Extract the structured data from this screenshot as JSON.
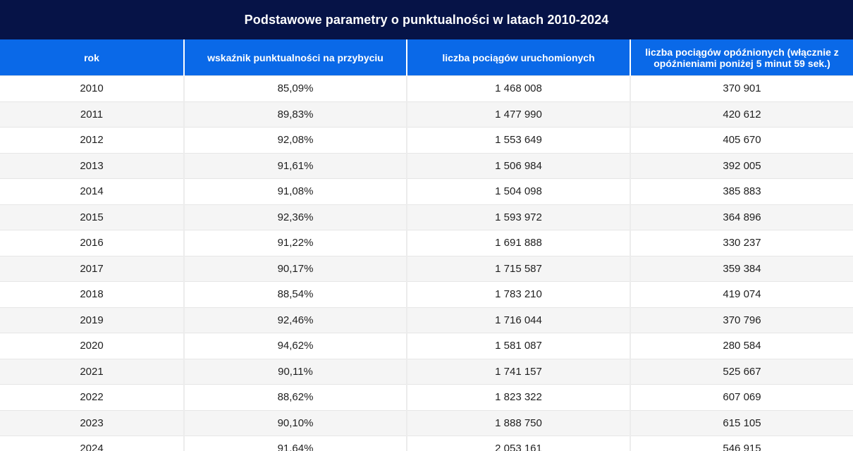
{
  "table": {
    "title": "Podstawowe parametry o punktualności w latach 2010-2024",
    "headers": [
      "rok",
      "wskaźnik punktualności na przybyciu",
      "liczba pociągów uruchomionych",
      "liczba pociągów opóźnionych (włącznie z opóźnieniami poniżej 5 minut 59 sek.)"
    ],
    "rows": [
      [
        "2010",
        "85,09%",
        "1 468 008",
        "370 901"
      ],
      [
        "2011",
        "89,83%",
        "1 477 990",
        "420 612"
      ],
      [
        "2012",
        "92,08%",
        "1 553 649",
        "405 670"
      ],
      [
        "2013",
        "91,61%",
        "1 506 984",
        "392 005"
      ],
      [
        "2014",
        "91,08%",
        "1 504 098",
        "385 883"
      ],
      [
        "2015",
        "92,36%",
        "1 593 972",
        "364 896"
      ],
      [
        "2016",
        "91,22%",
        "1 691 888",
        "330 237"
      ],
      [
        "2017",
        "90,17%",
        "1 715 587",
        "359 384"
      ],
      [
        "2018",
        "88,54%",
        "1 783 210",
        "419 074"
      ],
      [
        "2019",
        "92,46%",
        "1 716 044",
        "370 796"
      ],
      [
        "2020",
        "94,62%",
        "1 581 087",
        "280 584"
      ],
      [
        "2021",
        "90,11%",
        "1 741 157",
        "525 667"
      ],
      [
        "2022",
        "88,62%",
        "1 823 322",
        "607 069"
      ],
      [
        "2023",
        "90,10%",
        "1 888 750",
        "615 105"
      ],
      [
        "2024",
        "91,64%",
        "2 053 161",
        "546 915"
      ]
    ]
  },
  "colors": {
    "title_bg": "#061347",
    "header_bg": "#0a69e8",
    "row_alt_bg": "#f5f5f5"
  }
}
